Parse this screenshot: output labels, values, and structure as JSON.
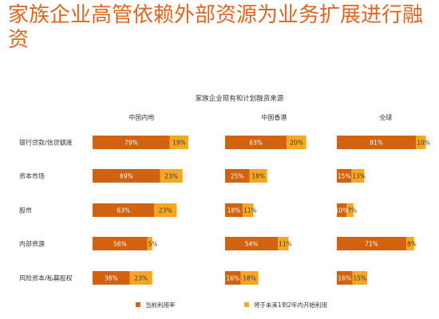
{
  "page_title": "家族企业高管依赖外部资源为业务扩展进行融资",
  "colors": {
    "title": "#e0651f",
    "current": "#d1620f",
    "future": "#f5a623",
    "label_on_current": "#ffffff",
    "label_on_future": "#3a3a3a",
    "text": "#333333"
  },
  "chart_data": {
    "type": "bar",
    "title": "家族企业现有和计划融资来源",
    "stacked": true,
    "panels": [
      "中国内地",
      "中国香港",
      "全球"
    ],
    "categories": [
      "银行贷款/信贷额度",
      "资本市场",
      "股市",
      "内部资源",
      "风险资本/私募股权"
    ],
    "series": [
      {
        "name": "当前利用率",
        "values": [
          [
            79,
            69,
            63,
            56,
            38
          ],
          [
            63,
            25,
            18,
            54,
            16
          ],
          [
            81,
            15,
            10,
            71,
            16
          ]
        ]
      },
      {
        "name": "将于未来1到2年内开始利用",
        "values": [
          [
            19,
            23,
            23,
            5,
            23
          ],
          [
            20,
            18,
            11,
            11,
            18
          ],
          [
            10,
            13,
            7,
            8,
            15
          ]
        ]
      }
    ],
    "legend_position": "bottom",
    "grid": false
  }
}
